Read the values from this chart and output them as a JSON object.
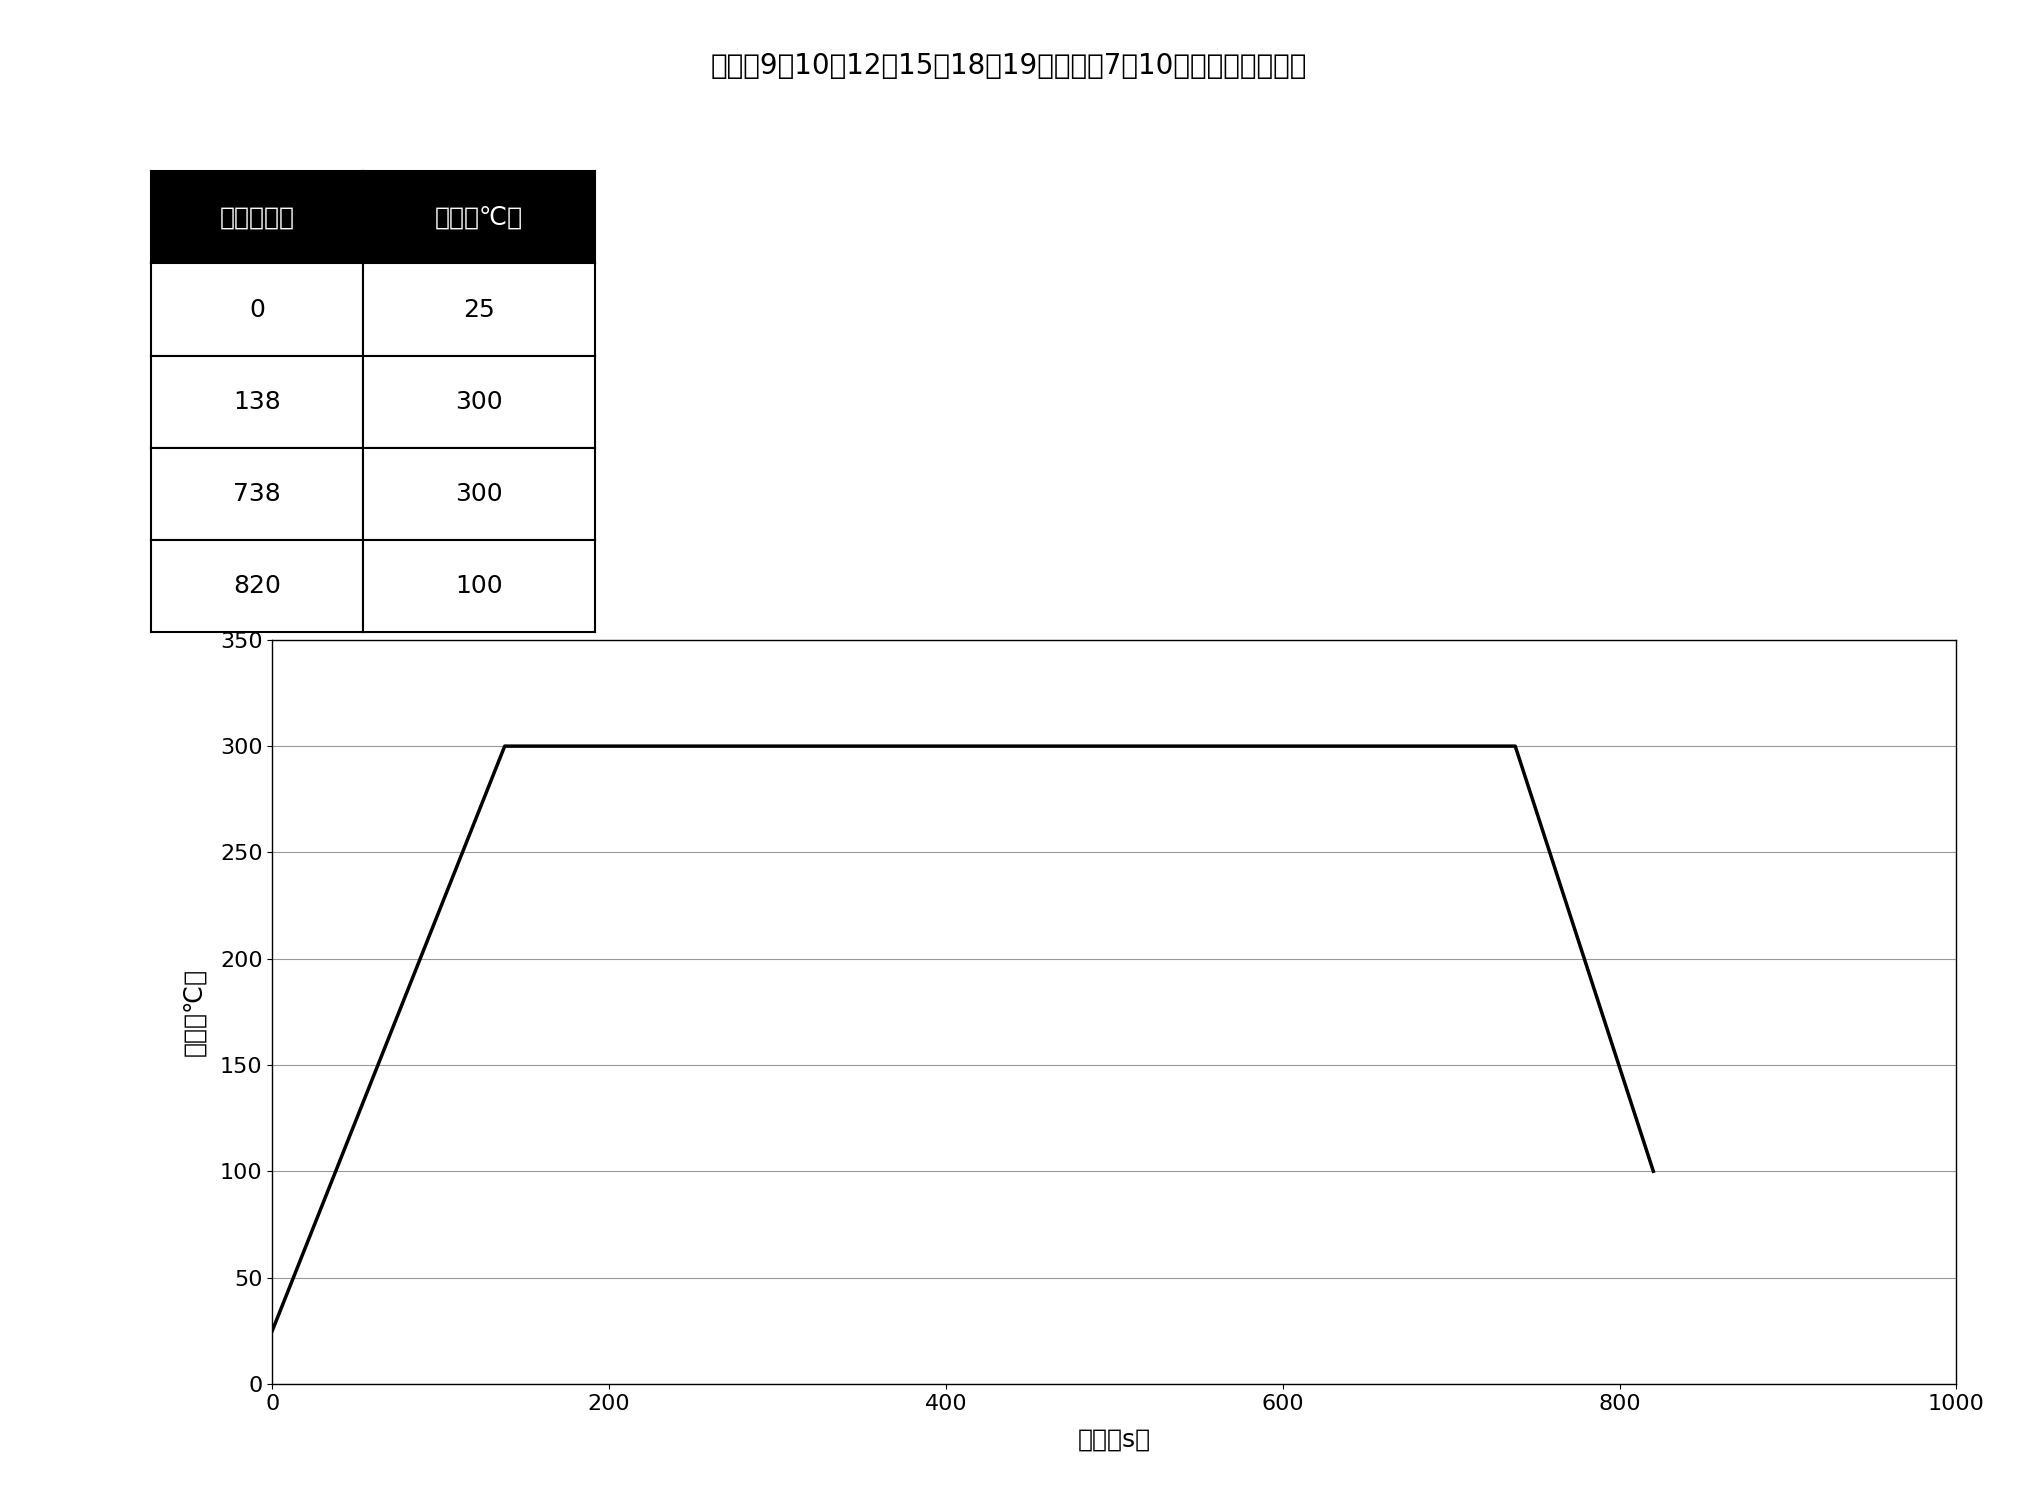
{
  "title": "实施例9～10、12～15、18、19、比较例7～10的回流焊加热曲线",
  "table_headers": [
    "时间（秒）",
    "温度（℃）"
  ],
  "table_data": [
    [
      "0",
      "25"
    ],
    [
      "138",
      "300"
    ],
    [
      "738",
      "300"
    ],
    [
      "820",
      "100"
    ]
  ],
  "x_data": [
    0,
    138,
    738,
    820
  ],
  "y_data": [
    25,
    300,
    300,
    100
  ],
  "xlabel": "时间（s）",
  "ylabel": "温度（℃）",
  "xlim": [
    0,
    1000
  ],
  "ylim": [
    0,
    350
  ],
  "xticks": [
    0,
    200,
    400,
    600,
    800,
    1000
  ],
  "yticks": [
    0,
    50,
    100,
    150,
    200,
    250,
    300,
    350
  ],
  "line_color": "#000000",
  "line_width": 2.5,
  "grid_color": "#999999",
  "background_color": "#ffffff",
  "plot_bg_color": "#ffffff",
  "title_fontsize": 20,
  "axis_label_fontsize": 18,
  "tick_fontsize": 16,
  "table_fontsize": 18,
  "table_header_fontsize": 18
}
